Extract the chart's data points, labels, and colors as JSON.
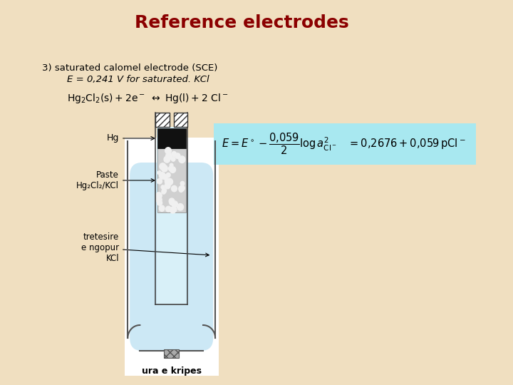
{
  "title": "Reference electrodes",
  "title_color": "#8B0000",
  "title_fontsize": 18,
  "bg_color": "#f0dfc0",
  "line1": "3) saturated calomel electrode (SCE)",
  "line2": "E = 0,241 V for saturated. KCl",
  "formula_box_color": "#a8e8f0",
  "diagram_bg": "#ffffff",
  "outer_vessel_fill": "#cce8f5",
  "inner_tube_fill": "#d8f0f8"
}
